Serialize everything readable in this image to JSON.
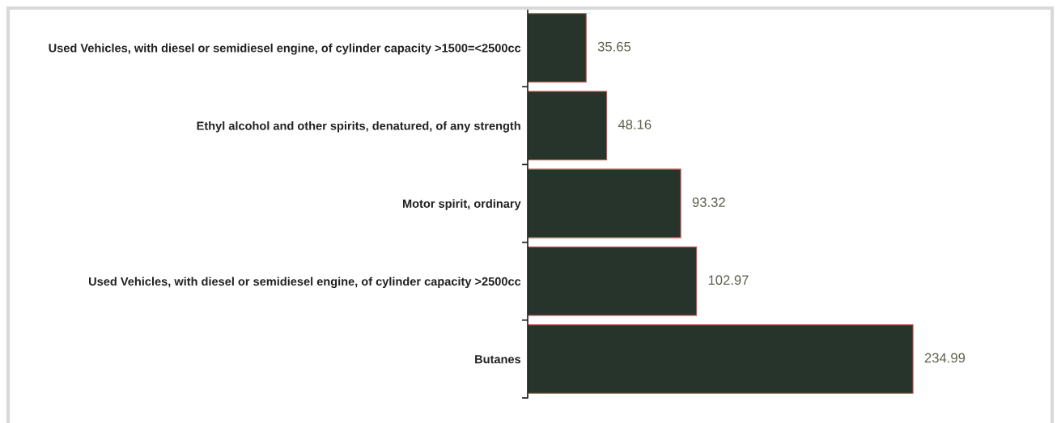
{
  "chart_data": {
    "type": "bar",
    "orientation": "horizontal",
    "categories": [
      "Used Vehicles, with diesel or semidiesel engine, of cylinder capacity >1500=<2500cc",
      "Ethyl alcohol and other spirits, denatured, of any strength",
      "Motor spirit, ordinary",
      "Used Vehicles, with diesel or semidiesel engine, of cylinder capacity >2500cc",
      "Butanes"
    ],
    "values": [
      35.65,
      48.16,
      93.32,
      102.97,
      234.99
    ],
    "color": "#27342b",
    "data_labels": true,
    "tick_labels": "y"
  }
}
